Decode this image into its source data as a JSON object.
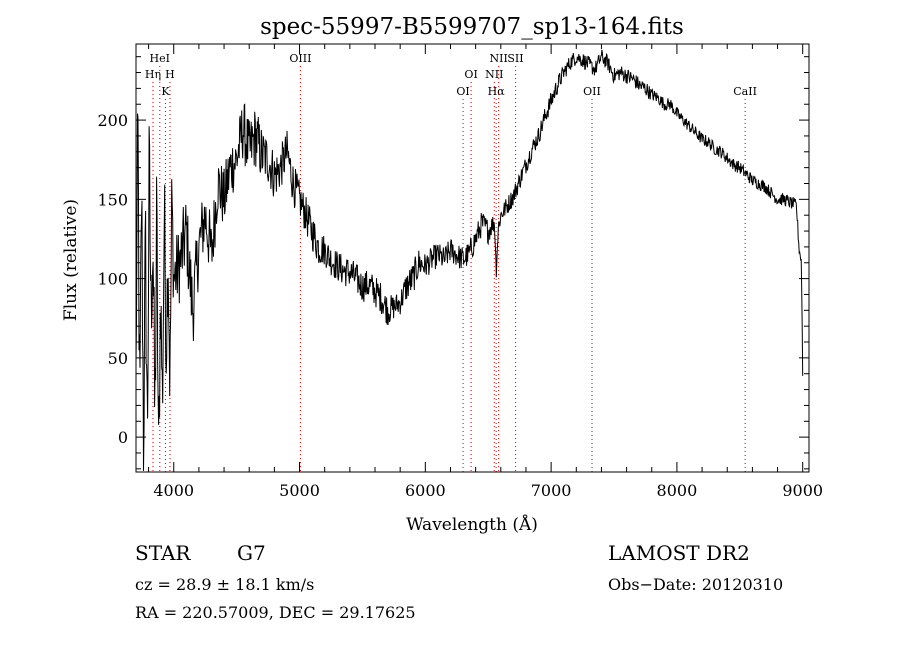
{
  "chart_data": {
    "type": "line",
    "title": "spec-55997-B5599707_sp13-164.fits",
    "xlabel": "Wavelength (Å)",
    "ylabel": "Flux (relative)",
    "xlim": [
      3700,
      9050
    ],
    "ylim": [
      -22,
      248
    ],
    "x_ticks": [
      4000,
      5000,
      6000,
      7000,
      8000,
      9000
    ],
    "y_ticks": [
      0,
      50,
      100,
      150,
      200
    ],
    "grid": false,
    "legend": "none",
    "series": [
      {
        "color": "#000000",
        "x": [
          3700,
          3715,
          3730,
          3745,
          3760,
          3775,
          3790,
          3805,
          3820,
          3835,
          3850,
          3865,
          3880,
          3895,
          3910,
          3925,
          3940,
          3955,
          3970,
          3985,
          4000,
          4050,
          4100,
          4150,
          4200,
          4250,
          4300,
          4350,
          4400,
          4450,
          4500,
          4550,
          4600,
          4650,
          4700,
          4750,
          4800,
          4850,
          4900,
          4950,
          5000,
          5050,
          5100,
          5150,
          5200,
          5250,
          5300,
          5350,
          5400,
          5450,
          5500,
          5550,
          5600,
          5650,
          5700,
          5750,
          5800,
          5850,
          5900,
          5950,
          6000,
          6050,
          6100,
          6150,
          6200,
          6250,
          6300,
          6350,
          6400,
          6450,
          6500,
          6550,
          6563,
          6580,
          6600,
          6650,
          6700,
          6750,
          6800,
          6850,
          6900,
          6950,
          7000,
          7050,
          7100,
          7150,
          7200,
          7250,
          7300,
          7350,
          7400,
          7450,
          7500,
          7550,
          7600,
          7650,
          7700,
          7750,
          7800,
          7850,
          7900,
          7950,
          8000,
          8050,
          8100,
          8150,
          8200,
          8250,
          8300,
          8350,
          8400,
          8450,
          8500,
          8550,
          8600,
          8650,
          8700,
          8750,
          8800,
          8850,
          8900,
          8950,
          8970,
          8990,
          9000
        ],
        "y": [
          40,
          200,
          5,
          160,
          0,
          120,
          0,
          170,
          80,
          130,
          5,
          140,
          -20,
          95,
          20,
          145,
          55,
          120,
          30,
          150,
          100,
          110,
          130,
          80,
          120,
          140,
          115,
          160,
          150,
          170,
          175,
          195,
          180,
          190,
          178,
          175,
          165,
          170,
          180,
          160,
          150,
          140,
          130,
          120,
          118,
          112,
          108,
          105,
          104,
          100,
          95,
          96,
          92,
          88,
          80,
          82,
          85,
          95,
          100,
          110,
          108,
          112,
          115,
          112,
          118,
          115,
          112,
          116,
          125,
          135,
          130,
          136,
          105,
          132,
          140,
          146,
          152,
          162,
          172,
          182,
          190,
          202,
          212,
          222,
          230,
          236,
          240,
          238,
          235,
          232,
          240,
          236,
          228,
          230,
          228,
          226,
          222,
          220,
          216,
          214,
          210,
          210,
          204,
          200,
          196,
          192,
          188,
          186,
          182,
          180,
          176,
          172,
          170,
          166,
          162,
          160,
          158,
          154,
          150,
          150,
          148,
          146,
          120,
          110,
          40
        ],
        "noise": [
          22,
          40,
          45,
          35,
          40,
          45,
          40,
          45,
          35,
          45,
          40,
          45,
          40,
          35,
          30,
          38,
          30,
          32,
          28,
          30,
          25,
          25,
          25,
          25,
          22,
          22,
          22,
          20,
          20,
          20,
          18,
          20,
          20,
          20,
          18,
          16,
          16,
          14,
          14,
          14,
          12,
          12,
          12,
          12,
          10,
          10,
          10,
          10,
          10,
          10,
          10,
          10,
          10,
          10,
          10,
          8,
          8,
          10,
          10,
          10,
          8,
          8,
          8,
          8,
          8,
          8,
          8,
          8,
          8,
          8,
          8,
          6,
          6,
          6,
          6,
          6,
          6,
          6,
          6,
          6,
          6,
          6,
          6,
          6,
          5,
          5,
          5,
          5,
          5,
          5,
          5,
          5,
          5,
          5,
          5,
          5,
          5,
          5,
          4,
          4,
          4,
          4,
          4,
          4,
          4,
          4,
          4,
          4,
          4,
          4,
          4,
          4,
          4,
          4,
          4,
          4,
          4,
          4,
          4,
          4,
          4,
          4,
          4,
          4,
          4
        ]
      }
    ],
    "lines": [
      {
        "name": "HeI",
        "x": 3889,
        "row": 0
      },
      {
        "name": "Hη",
        "x": 3835,
        "row": 1
      },
      {
        "name": "H",
        "x": 3970,
        "row": 1
      },
      {
        "name": "K",
        "x": 3934,
        "row": 2
      },
      {
        "name": "OIII",
        "x": 5007,
        "row": 0
      },
      {
        "name": "OI",
        "x": 6364,
        "row": 1
      },
      {
        "name": "OI",
        "x": 6300,
        "row": 2
      },
      {
        "name": "NII",
        "x": 6583,
        "row": 0
      },
      {
        "name": "SII",
        "x": 6717,
        "row": 0
      },
      {
        "name": "NII",
        "x": 6548,
        "row": 1
      },
      {
        "name": "Hα",
        "x": 6563,
        "row": 2
      },
      {
        "name": "OII",
        "x": 7325,
        "row": 2
      },
      {
        "name": "CaII",
        "x": 8542,
        "row": 2
      }
    ],
    "line_color": "#cc0000"
  },
  "info": {
    "object_type": "STAR",
    "subclass": "G7",
    "survey": "LAMOST DR2",
    "cz": "cz = 28.9 ± 18.1 km/s",
    "obs_date": "Obs−Date: 20120310",
    "coords": "RA = 220.57009, DEC =  29.17625"
  }
}
